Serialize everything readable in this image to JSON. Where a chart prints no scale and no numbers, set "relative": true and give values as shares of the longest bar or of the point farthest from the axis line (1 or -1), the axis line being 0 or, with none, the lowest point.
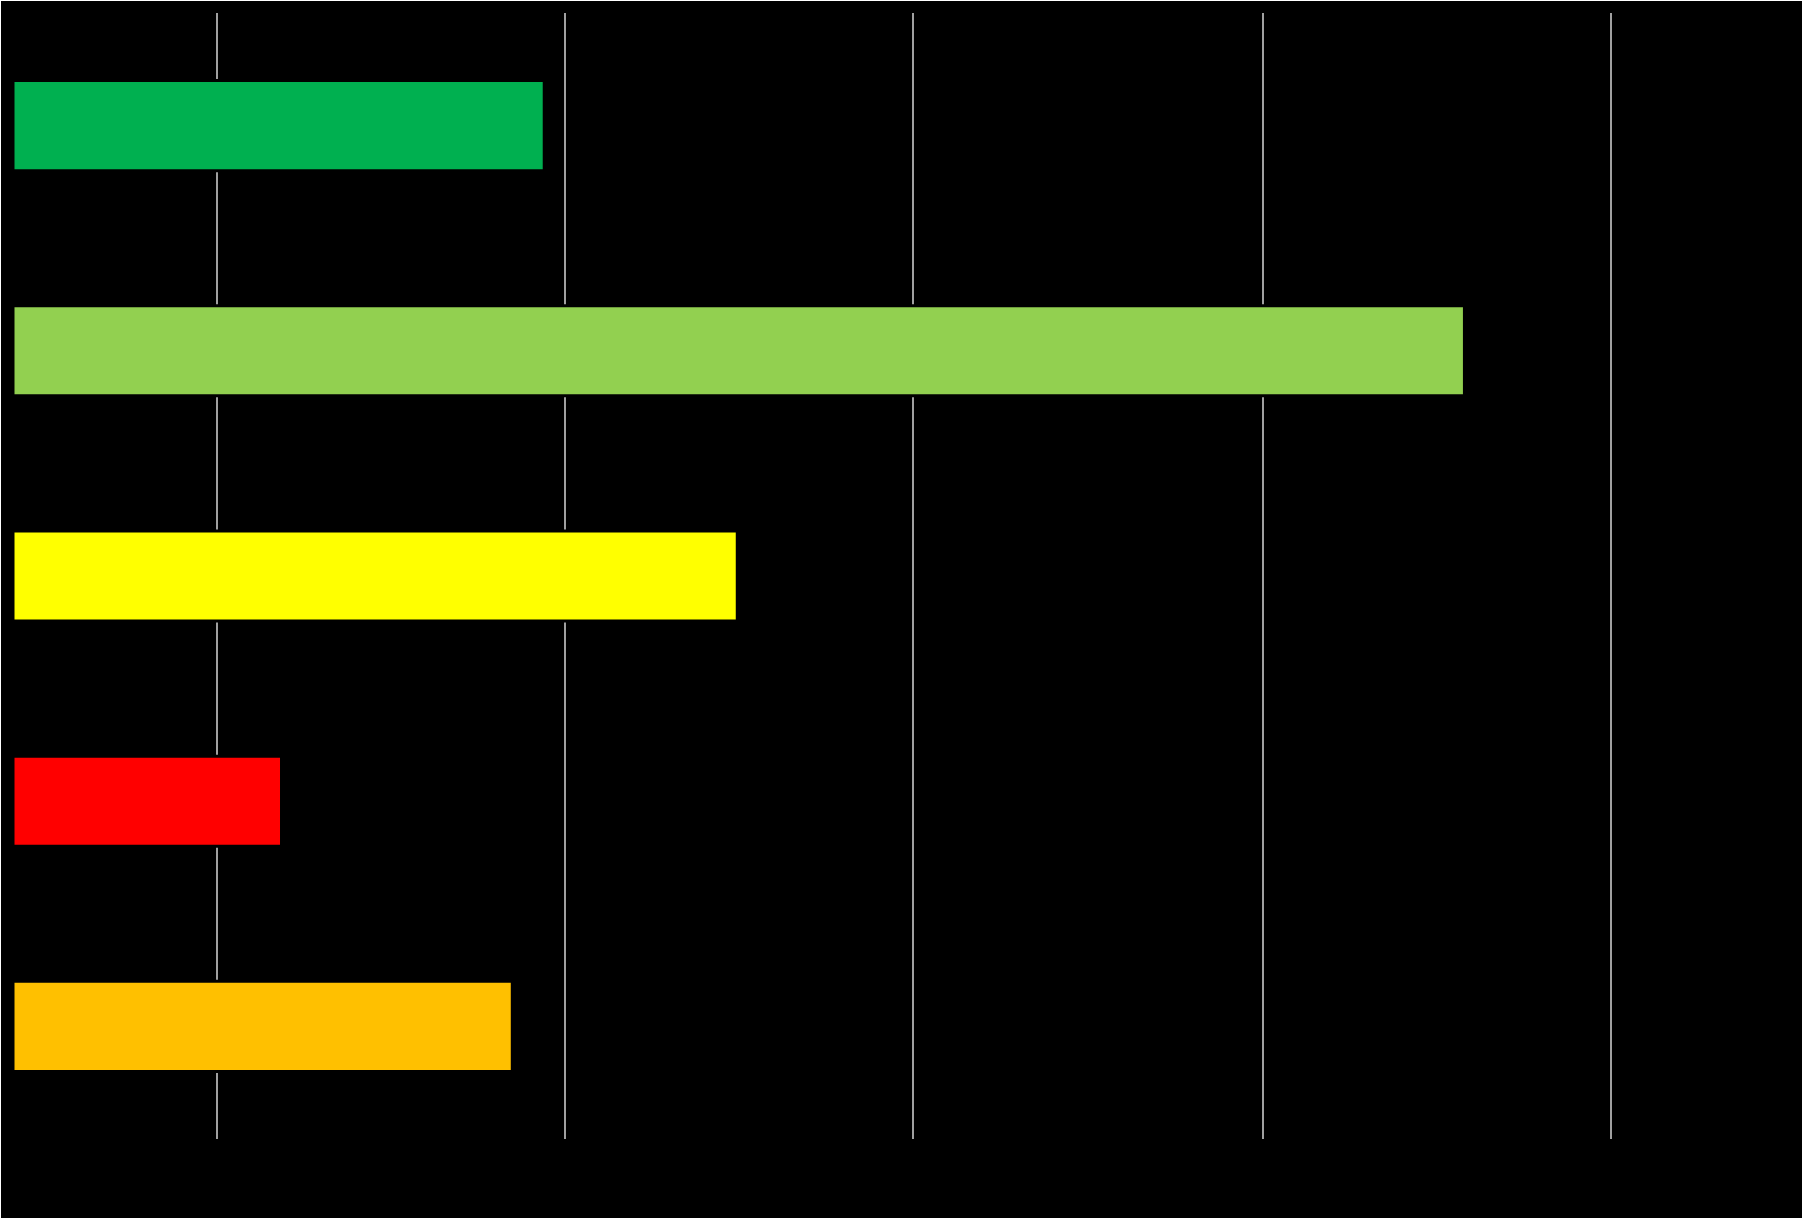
{
  "chart_data": {
    "type": "bar",
    "orientation": "horizontal",
    "relative": true,
    "categories": [
      null,
      null,
      null,
      null,
      null
    ],
    "values": [
      0.366,
      1,
      0.499,
      0.185,
      0.344
    ],
    "colors": [
      "#00b050",
      "#92d050",
      "#ffff00",
      "#ff0000",
      "#ffc000"
    ],
    "grid": "x"
  }
}
